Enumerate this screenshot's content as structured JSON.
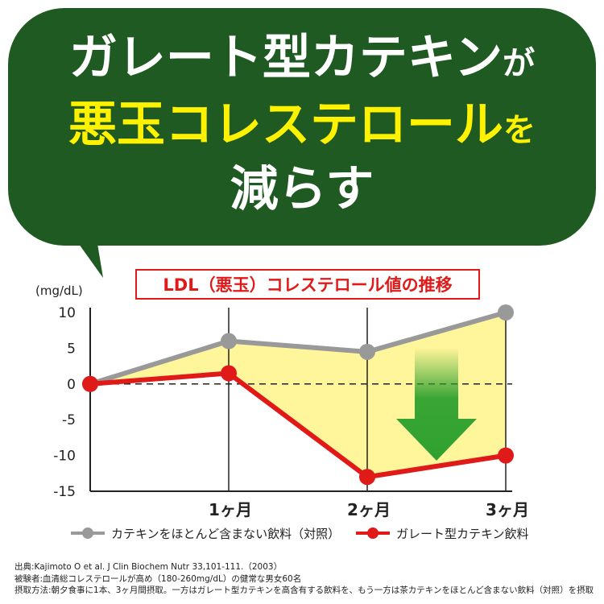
{
  "headline": {
    "line1": "ガレート型カテキン",
    "line1_particle": "が",
    "line2": "悪玉コレステロール",
    "line2_particle": "を",
    "line3": "減らす"
  },
  "colors": {
    "bubble": "#1f5a22",
    "headline_accent": "#fff200",
    "catechin_series": "#e01919",
    "control_series": "#999999",
    "fill_between": "#fff59a",
    "arrow": "#2fa12f"
  },
  "chart_data": {
    "type": "line",
    "title": "LDL（悪玉）コレステロール値の推移",
    "unit_label": "(mg/dL)",
    "x_tick_labels": [
      "1ヶ月",
      "2ヶ月",
      "3ヶ月"
    ],
    "x": [
      0,
      1,
      2,
      3
    ],
    "ylim": [
      -15,
      10
    ],
    "y_ticks": [
      10,
      5,
      0,
      -5,
      -10,
      -15
    ],
    "grid": "vertical lines at each month, dashed line at 0",
    "fill_between_series": true,
    "annotation_icon": "green-down-arrow",
    "series": [
      {
        "name": "カテキンをほとんど含まない飲料（対照）",
        "color": "#999999",
        "values": [
          0,
          6,
          4.5,
          10
        ]
      },
      {
        "name": "ガレート型カテキン飲料",
        "color": "#e01919",
        "values": [
          0,
          1.5,
          -13,
          -10
        ]
      }
    ]
  },
  "footnotes": [
    "出典:Kajimoto O et al. J Clin Biochem Nutr 33,101-111.（2003）",
    "被験者:血清総コレステロールが高め（180-260mg/dL）の健常な男女60名",
    "摂取方法:朝夕食事に1本、3ヶ月間摂取。一方はガレート型カテキンを高含有する飲料を、もう一方は茶カテキンをほとんど含まない飲料（対照）を摂取"
  ]
}
